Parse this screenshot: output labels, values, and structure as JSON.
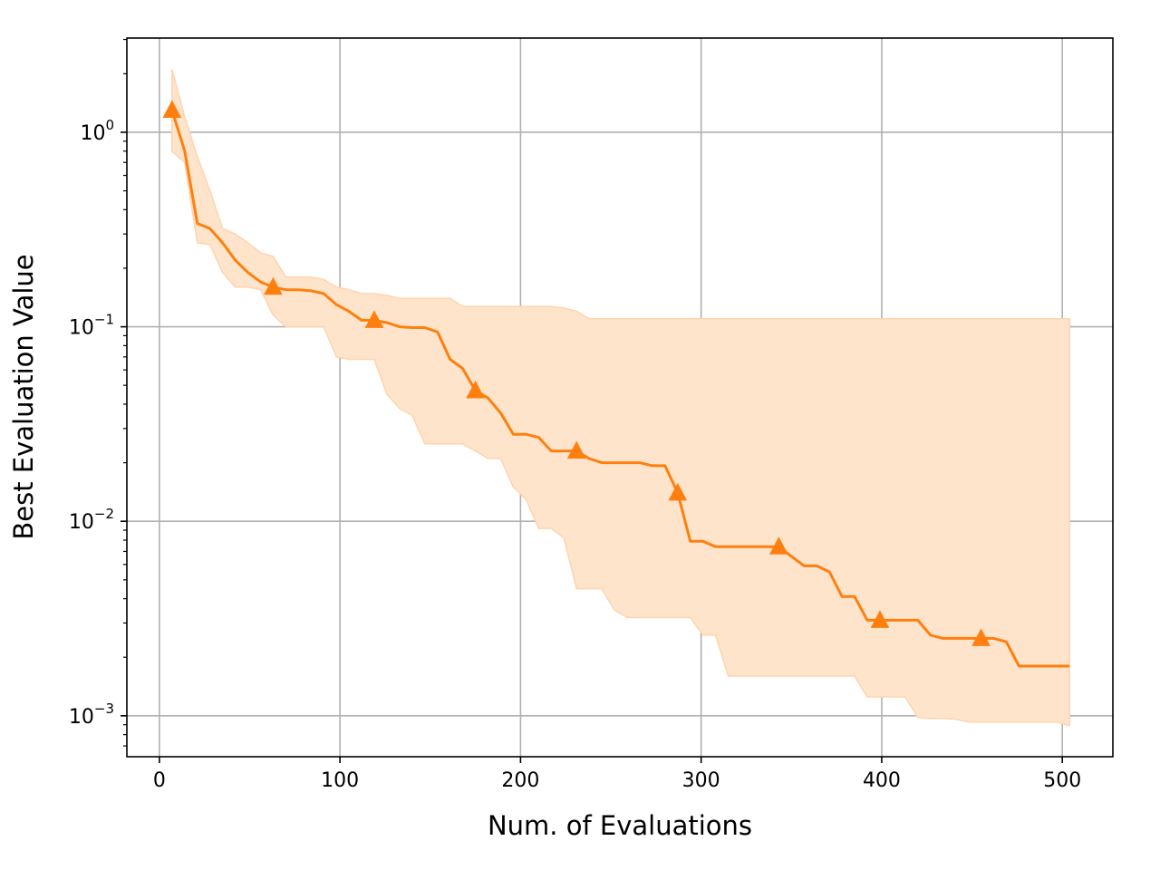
{
  "chart_data": {
    "type": "line",
    "title": "",
    "xlabel": "Num. of Evaluations",
    "ylabel": "Best Evaluation Value",
    "yscale": "log",
    "grid": true,
    "xlim": [
      -18,
      528
    ],
    "ylim": [
      0.000616,
      3.05
    ],
    "x_ticks": [
      0,
      100,
      200,
      300,
      400,
      500
    ],
    "y_ticks": [
      {
        "value": 1,
        "base": "10",
        "exp": "0"
      },
      {
        "value": 0.1,
        "base": "10",
        "exp": "−1"
      },
      {
        "value": 0.01,
        "base": "10",
        "exp": "−2"
      },
      {
        "value": 0.001,
        "base": "10",
        "exp": "−3"
      }
    ],
    "colors": {
      "line": "#ff7f0e",
      "band": "#ffe4cc",
      "band_edge": "#ffd3ad",
      "grid": "#b0b0b0"
    },
    "series": [
      {
        "x": [
          7,
          14,
          21,
          28,
          35,
          42,
          49,
          56,
          63,
          70,
          77,
          84,
          91,
          98,
          105,
          112,
          119,
          126,
          133,
          140,
          147,
          154,
          161,
          168,
          175,
          182,
          189,
          196,
          203,
          210,
          217,
          224,
          231,
          238,
          245,
          252,
          259,
          266,
          273,
          280,
          287,
          294,
          301,
          308,
          315,
          322,
          329,
          336,
          343,
          350,
          357,
          364,
          371,
          378,
          385,
          392,
          399,
          406,
          413,
          420,
          427,
          434,
          441,
          448,
          455,
          462,
          469,
          476,
          483,
          490,
          497,
          504
        ],
        "values": [
          1.3,
          0.8,
          0.34,
          0.32,
          0.27,
          0.22,
          0.19,
          0.17,
          0.16,
          0.155,
          0.155,
          0.153,
          0.148,
          0.13,
          0.12,
          0.108,
          0.108,
          0.105,
          0.1,
          0.099,
          0.099,
          0.094,
          0.068,
          0.061,
          0.047,
          0.043,
          0.036,
          0.028,
          0.028,
          0.027,
          0.023,
          0.023,
          0.023,
          0.021,
          0.02,
          0.02,
          0.02,
          0.02,
          0.0193,
          0.0193,
          0.014,
          0.0079,
          0.0079,
          0.0074,
          0.0074,
          0.0074,
          0.0074,
          0.0074,
          0.0074,
          0.0066,
          0.0059,
          0.0059,
          0.0055,
          0.0041,
          0.0041,
          0.0031,
          0.0031,
          0.0031,
          0.0031,
          0.0031,
          0.0026,
          0.0025,
          0.0025,
          0.0025,
          0.0025,
          0.0025,
          0.0024,
          0.0018,
          0.0018,
          0.0018,
          0.0018,
          0.0018
        ],
        "lower": [
          0.8,
          0.7,
          0.27,
          0.265,
          0.19,
          0.16,
          0.16,
          0.155,
          0.115,
          0.1,
          0.1,
          0.1,
          0.1,
          0.07,
          0.068,
          0.068,
          0.068,
          0.045,
          0.038,
          0.035,
          0.025,
          0.025,
          0.025,
          0.025,
          0.023,
          0.021,
          0.021,
          0.015,
          0.013,
          0.0092,
          0.0092,
          0.0082,
          0.0045,
          0.0045,
          0.0045,
          0.0035,
          0.0032,
          0.0032,
          0.0032,
          0.0032,
          0.0032,
          0.0032,
          0.0026,
          0.0026,
          0.0016,
          0.0016,
          0.0016,
          0.0016,
          0.0016,
          0.0016,
          0.0016,
          0.0016,
          0.0016,
          0.0016,
          0.0016,
          0.00125,
          0.00125,
          0.00125,
          0.00125,
          0.00098,
          0.00097,
          0.00097,
          0.00096,
          0.00093,
          0.00093,
          0.00093,
          0.00093,
          0.00093,
          0.00093,
          0.00093,
          0.00093,
          0.00089
        ],
        "upper": [
          2.1,
          1.2,
          0.75,
          0.5,
          0.32,
          0.3,
          0.27,
          0.24,
          0.23,
          0.18,
          0.18,
          0.18,
          0.175,
          0.16,
          0.155,
          0.148,
          0.148,
          0.145,
          0.14,
          0.14,
          0.14,
          0.14,
          0.14,
          0.127,
          0.127,
          0.127,
          0.127,
          0.127,
          0.127,
          0.127,
          0.127,
          0.125,
          0.12,
          0.11,
          0.11,
          0.11,
          0.11,
          0.11,
          0.11,
          0.11,
          0.11,
          0.11,
          0.11,
          0.11,
          0.11,
          0.11,
          0.11,
          0.11,
          0.11,
          0.11,
          0.11,
          0.11,
          0.11,
          0.11,
          0.11,
          0.11,
          0.11,
          0.11,
          0.11,
          0.11,
          0.11,
          0.11,
          0.11,
          0.11,
          0.11,
          0.11,
          0.11,
          0.11,
          0.11,
          0.11,
          0.11,
          0.11
        ],
        "markers": [
          {
            "x": 7,
            "y": 1.3
          },
          {
            "x": 63,
            "y": 0.16
          },
          {
            "x": 119,
            "y": 0.108
          },
          {
            "x": 175,
            "y": 0.047
          },
          {
            "x": 231,
            "y": 0.023
          },
          {
            "x": 287,
            "y": 0.014
          },
          {
            "x": 343,
            "y": 0.0074
          },
          {
            "x": 399,
            "y": 0.0031
          },
          {
            "x": 455,
            "y": 0.0025
          }
        ]
      }
    ]
  }
}
